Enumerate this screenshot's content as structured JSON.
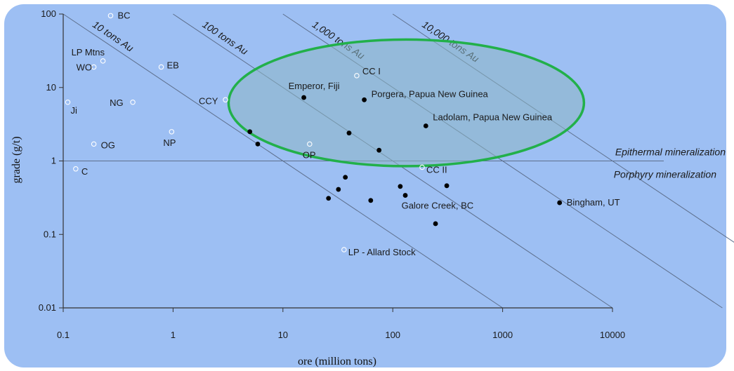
{
  "chart_data": {
    "type": "scatter",
    "title": "",
    "xlabel": "ore (million tons)",
    "ylabel": "grade (g/t)",
    "x_scale": "log",
    "y_scale": "log",
    "xlim": [
      0.1,
      10000
    ],
    "ylim": [
      0.01,
      100
    ],
    "x_ticks": [
      {
        "value": 0.1,
        "label": "0.1"
      },
      {
        "value": 1,
        "label": "1"
      },
      {
        "value": 10,
        "label": "10"
      },
      {
        "value": 100,
        "label": "100"
      },
      {
        "value": 1000,
        "label": "1000"
      },
      {
        "value": 10000,
        "label": "10000"
      }
    ],
    "y_ticks": [
      {
        "value": 0.01,
        "label": "0.01"
      },
      {
        "value": 0.1,
        "label": "0.1"
      },
      {
        "value": 1,
        "label": "1"
      },
      {
        "value": 10,
        "label": "10"
      },
      {
        "value": 100,
        "label": "100"
      }
    ],
    "contour_lines": [
      {
        "label": "10 tons Au",
        "tons": 10
      },
      {
        "label": "100 tons Au",
        "tons": 100
      },
      {
        "label": "1,000 tons Au",
        "tons": 1000
      },
      {
        "label": "10,000 tons Au",
        "tons": 10000
      }
    ],
    "reference_line": {
      "y": 1,
      "label_above": "Epithermal mineralization",
      "label_below": "Porphyry mineralization"
    },
    "series": [
      {
        "marker": "open",
        "points": [
          {
            "x": 0.27,
            "y": 95,
            "label": "BC"
          },
          {
            "x": 0.23,
            "y": 23,
            "label": "LP Mtns"
          },
          {
            "x": 0.19,
            "y": 19,
            "label": "WO"
          },
          {
            "x": 0.78,
            "y": 19,
            "label": "EB"
          },
          {
            "x": 0.43,
            "y": 6.3,
            "label": "NG"
          },
          {
            "x": 0.11,
            "y": 6.3,
            "label": "Ji"
          },
          {
            "x": 3.0,
            "y": 6.8,
            "label": "CCY"
          },
          {
            "x": 0.97,
            "y": 2.5,
            "label": "NP"
          },
          {
            "x": 0.19,
            "y": 1.7,
            "label": "OG"
          },
          {
            "x": 17.5,
            "y": 1.7,
            "label": "OP"
          },
          {
            "x": 0.13,
            "y": 0.78,
            "label": "C"
          },
          {
            "x": 47,
            "y": 14.5,
            "label": "CC I"
          },
          {
            "x": 185,
            "y": 0.82,
            "label": "CC II"
          },
          {
            "x": 36,
            "y": 0.062,
            "label": "LP - Allard Stock"
          }
        ]
      },
      {
        "marker": "filled",
        "points": [
          {
            "x": 15.5,
            "y": 7.3,
            "label": "Emperor, Fiji"
          },
          {
            "x": 55,
            "y": 6.8,
            "label": "Porgera, Papua New Guinea"
          },
          {
            "x": 200,
            "y": 3.0,
            "label": "Ladolam, Papua New Guinea"
          },
          {
            "x": 3300,
            "y": 0.27,
            "label": "Bingham, UT"
          },
          {
            "x": 5.0,
            "y": 2.5,
            "label": ""
          },
          {
            "x": 5.9,
            "y": 1.7,
            "label": ""
          },
          {
            "x": 40,
            "y": 2.4,
            "label": ""
          },
          {
            "x": 75,
            "y": 1.4,
            "label": ""
          },
          {
            "x": 37,
            "y": 0.6,
            "label": ""
          },
          {
            "x": 32,
            "y": 0.41,
            "label": ""
          },
          {
            "x": 26,
            "y": 0.31,
            "label": ""
          },
          {
            "x": 63,
            "y": 0.29,
            "label": ""
          },
          {
            "x": 117,
            "y": 0.45,
            "label": ""
          },
          {
            "x": 130,
            "y": 0.34,
            "label": ""
          },
          {
            "x": 310,
            "y": 0.46,
            "label": ""
          },
          {
            "x": 245,
            "y": 0.14,
            "label": ""
          }
        ]
      }
    ],
    "named_point_labels": {
      "galore_creek": "Galore Creek, BC"
    },
    "highlight": {
      "shape": "ellipse",
      "color": "#22b04a",
      "x_range": [
        3.2,
        5500
      ],
      "y_range": [
        0.85,
        45
      ]
    },
    "colors": {
      "background": "#9dbff3",
      "line": "#5d6f8c",
      "axis": "#333333",
      "highlight_fill": "#8cb6c4"
    }
  }
}
